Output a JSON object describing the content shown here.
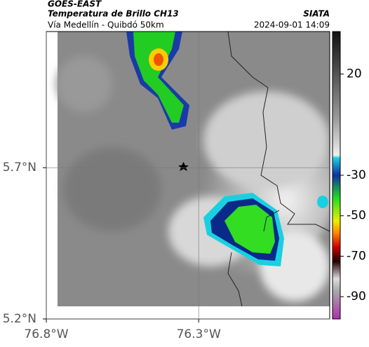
{
  "header": {
    "title": "GOES-EAST",
    "subtitle": "Temperatura de Brillo CH13",
    "source": "SIATA",
    "route": "Vía Medellín - Quibdó 50km",
    "date": "2024-09-01 14:09"
  },
  "map": {
    "xlim": [
      -76.8,
      -75.87
    ],
    "ylim": [
      5.2,
      6.15
    ],
    "xticks": [
      {
        "value": -76.8,
        "label": "76.8°W"
      },
      {
        "value": -76.3,
        "label": "76.3°W"
      }
    ],
    "yticks": [
      {
        "value": 5.2,
        "label": "5.2°N"
      },
      {
        "value": 5.7,
        "label": "5.7°N"
      }
    ],
    "grid": true
  },
  "colorbar": {
    "lim": [
      -101,
      41
    ],
    "ticks": [
      20,
      -30,
      -50,
      -70,
      -90
    ]
  }
}
